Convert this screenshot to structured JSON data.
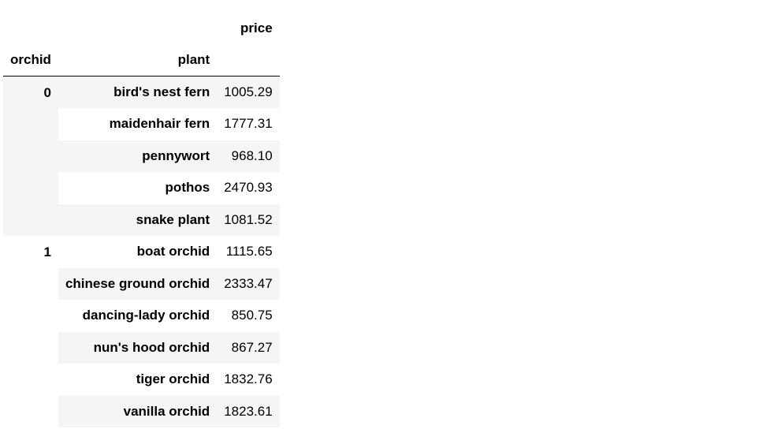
{
  "table": {
    "column_header": "price",
    "index_names": [
      "orchid",
      "plant"
    ],
    "groups": [
      {
        "key": "0",
        "rows": [
          {
            "plant": "bird's nest fern",
            "price": "1005.29"
          },
          {
            "plant": "maidenhair fern",
            "price": "1777.31"
          },
          {
            "plant": "pennywort",
            "price": "968.10"
          },
          {
            "plant": "pothos",
            "price": "2470.93"
          },
          {
            "plant": "snake plant",
            "price": "1081.52"
          }
        ]
      },
      {
        "key": "1",
        "rows": [
          {
            "plant": "boat orchid",
            "price": "1115.65"
          },
          {
            "plant": "chinese ground orchid",
            "price": "2333.47"
          },
          {
            "plant": "dancing-lady orchid",
            "price": "850.75"
          },
          {
            "plant": "nun's hood orchid",
            "price": "867.27"
          },
          {
            "plant": "tiger orchid",
            "price": "1832.76"
          },
          {
            "plant": "vanilla orchid",
            "price": "1823.61"
          }
        ]
      }
    ]
  }
}
